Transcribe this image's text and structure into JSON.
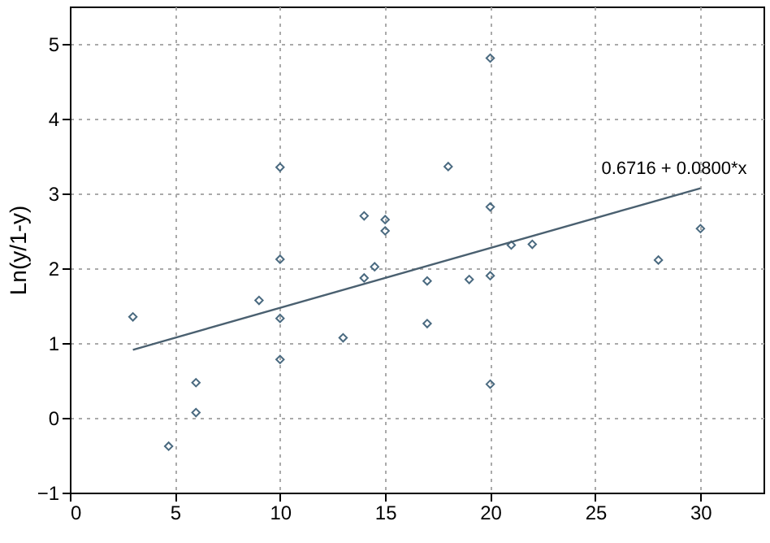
{
  "chart_data": {
    "type": "scatter",
    "ylabel": "Ln(y/1-y)",
    "grid": true,
    "xlim": [
      0,
      33
    ],
    "ylim": [
      -1,
      5.5
    ],
    "xticks": [
      0,
      5,
      10,
      15,
      20,
      25,
      30
    ],
    "yticks": [
      -1,
      0,
      1,
      2,
      3,
      4,
      5
    ],
    "annotations": [
      "0.6716 + 0.0800*x"
    ],
    "series": [
      {
        "marker": "diamond",
        "color": "#4a6a80",
        "x": [
          3,
          4.7,
          6,
          6,
          9,
          10,
          10,
          10,
          10,
          13,
          14,
          14,
          14.5,
          15,
          15,
          17,
          17,
          18,
          19,
          20,
          20,
          20,
          20,
          21,
          22,
          28,
          30
        ],
        "values": [
          1.35,
          -0.38,
          0.47,
          0.07,
          1.57,
          3.35,
          2.12,
          1.33,
          0.78,
          1.07,
          2.7,
          1.87,
          2.02,
          2.65,
          2.5,
          1.83,
          1.26,
          3.36,
          1.85,
          4.81,
          2.82,
          1.9,
          0.45,
          2.31,
          2.32,
          2.11,
          2.53
        ]
      },
      {
        "type": "line",
        "color": "#4a6070",
        "line_style": "solid",
        "x": [
          3,
          30
        ],
        "values": [
          0.91,
          3.07
        ]
      }
    ]
  }
}
